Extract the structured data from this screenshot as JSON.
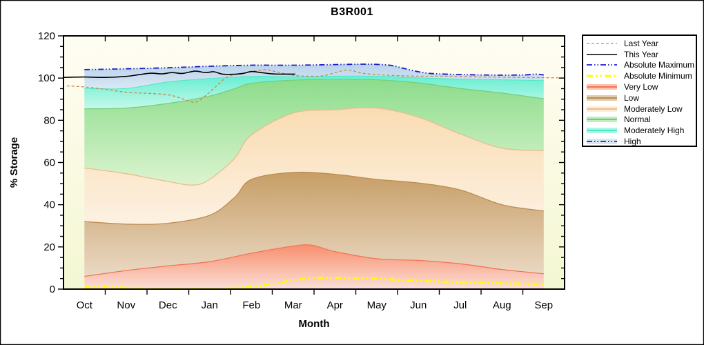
{
  "title": "B3R001",
  "chart_data": {
    "type": "area",
    "title": "B3R001",
    "xlabel": "Month",
    "ylabel": "% Storage",
    "ylim": [
      0,
      120
    ],
    "y_major_ticks": [
      0,
      20,
      40,
      60,
      80,
      100,
      120
    ],
    "y_minor_step": 5,
    "months": [
      "Oct",
      "Nov",
      "Dec",
      "Jan",
      "Feb",
      "Mar",
      "Apr",
      "May",
      "Jun",
      "Jul",
      "Aug",
      "Sep"
    ],
    "x_units": "u = month index, 0 = Oct center, 11 = Sep center",
    "plot_bg_top": "#fffdf3",
    "plot_bg_bottom": "#f4f7d2",
    "frame_color": "#000000",
    "bands": [
      {
        "name": "very-low",
        "label": "Very Low",
        "color_top": "#f78f6c",
        "color_bottom": "#fbdfd8",
        "edge_color": "#f2745a",
        "edge_width": 1.3,
        "top": [
          [
            0,
            6.0
          ],
          [
            1,
            8.8
          ],
          [
            2,
            11.0
          ],
          [
            3,
            13.0
          ],
          [
            4,
            17.0
          ],
          [
            5,
            20.4
          ],
          [
            5.45,
            20.8
          ],
          [
            6,
            17.8
          ],
          [
            7,
            14.4
          ],
          [
            8,
            13.6
          ],
          [
            9,
            12.0
          ],
          [
            10,
            9.3
          ],
          [
            11,
            7.3
          ]
        ]
      },
      {
        "name": "low",
        "label": "Low",
        "color_top": "#c79e66",
        "color_bottom": "#ead9c4",
        "edge_color": "#ba8c50",
        "edge_width": 1.3,
        "top": [
          [
            0,
            32
          ],
          [
            1,
            30.8
          ],
          [
            2,
            31.2
          ],
          [
            3,
            35
          ],
          [
            3.6,
            43.5
          ],
          [
            4,
            52
          ],
          [
            5,
            55.3
          ],
          [
            6,
            54.4
          ],
          [
            7,
            52
          ],
          [
            8,
            50.3
          ],
          [
            9,
            47
          ],
          [
            10,
            40
          ],
          [
            11,
            37
          ]
        ]
      },
      {
        "name": "moderately-low",
        "label": "Moderately Low",
        "color_top": "#f9dcb2",
        "color_bottom": "#fdf1e2",
        "edge_color": "#e9bd8c",
        "edge_width": 1.3,
        "top": [
          [
            0,
            57.4
          ],
          [
            1,
            54.7
          ],
          [
            2,
            51
          ],
          [
            2.6,
            49.3
          ],
          [
            3,
            52
          ],
          [
            3.6,
            62
          ],
          [
            4,
            73
          ],
          [
            5,
            83.4
          ],
          [
            6,
            85
          ],
          [
            7,
            85.8
          ],
          [
            8,
            81.5
          ],
          [
            9,
            73.5
          ],
          [
            10,
            66.8
          ],
          [
            11,
            65.6
          ]
        ]
      },
      {
        "name": "normal",
        "label": "Normal",
        "color_top": "#8cdc8c",
        "color_bottom": "#dcf4d0",
        "edge_color": "#74cf79",
        "edge_width": 1.3,
        "top": [
          [
            0,
            85.4
          ],
          [
            1,
            85.8
          ],
          [
            2,
            88
          ],
          [
            3,
            91.5
          ],
          [
            3.6,
            95
          ],
          [
            4,
            97.5
          ],
          [
            5,
            99
          ],
          [
            6,
            99.4
          ],
          [
            7,
            99.2
          ],
          [
            8,
            97.7
          ],
          [
            9,
            95.1
          ],
          [
            10,
            92.9
          ],
          [
            11,
            90.2
          ]
        ]
      },
      {
        "name": "moderately-high",
        "label": "Moderately High",
        "color_top": "#68efd1",
        "color_bottom": "#c6f8ea",
        "edge_color": "#4fe6c4",
        "edge_width": 1,
        "top": [
          [
            0,
            95.1
          ],
          [
            1,
            95.1
          ],
          [
            2,
            98.2
          ],
          [
            3,
            99.8
          ],
          [
            4,
            100.8
          ],
          [
            5,
            100.6
          ],
          [
            6,
            100.9
          ],
          [
            7,
            100.9
          ],
          [
            8,
            100.1
          ],
          [
            9,
            99.5
          ],
          [
            10,
            99.2
          ],
          [
            11,
            98.8
          ]
        ]
      },
      {
        "name": "high",
        "label": "High",
        "color_top": "#b9d3ea",
        "color_bottom": "#d9e8f5",
        "edge_color": "none",
        "edge_width": 0,
        "top": [
          [
            0,
            104.0
          ],
          [
            1,
            104.4
          ],
          [
            2,
            104.9
          ],
          [
            3,
            105.6
          ],
          [
            4,
            106.1
          ],
          [
            5,
            106.1
          ],
          [
            6,
            106.4
          ],
          [
            6.7,
            106.6
          ],
          [
            7,
            106.5
          ],
          [
            7.35,
            106.0
          ],
          [
            7.65,
            104.6
          ],
          [
            8,
            103.0
          ],
          [
            8.35,
            102.1
          ],
          [
            9,
            101.7
          ],
          [
            9.5,
            101.5
          ],
          [
            10,
            101.4
          ],
          [
            10.55,
            101.5
          ],
          [
            10.8,
            101.9
          ],
          [
            11,
            101.5
          ]
        ]
      }
    ],
    "lines": [
      {
        "name": "last-year",
        "label": "Last Year",
        "color": "#c8884a",
        "width": 1.3,
        "dash": "4 3",
        "points": [
          [
            -0.42,
            96.3
          ],
          [
            0,
            95.8
          ],
          [
            0.46,
            94.8
          ],
          [
            1,
            93.3
          ],
          [
            1.5,
            92.8
          ],
          [
            2,
            92.1
          ],
          [
            2.31,
            90.5
          ],
          [
            2.66,
            88.6
          ],
          [
            2.95,
            92.5
          ],
          [
            3.15,
            96
          ],
          [
            3.43,
            100.6
          ],
          [
            3.76,
            102.2
          ],
          [
            4.31,
            103.9
          ],
          [
            4.6,
            103
          ],
          [
            5,
            101.3
          ],
          [
            5.42,
            100.9
          ],
          [
            5.75,
            101.2
          ],
          [
            6.28,
            103.8
          ],
          [
            6.66,
            102.3
          ],
          [
            7.24,
            101.4
          ],
          [
            8,
            100.9
          ],
          [
            8.7,
            100.9
          ],
          [
            9.55,
            100.5
          ],
          [
            10.4,
            100.3
          ],
          [
            11,
            100.2
          ],
          [
            11.5,
            100.1
          ]
        ]
      },
      {
        "name": "absolute-minimum",
        "label": "Absolute Minimum",
        "color": "#ffff00",
        "width": 3,
        "dash": "9 4 2.5 4 2.5 4",
        "points": [
          [
            0,
            0.9
          ],
          [
            0.5,
            1.0
          ],
          [
            1,
            0.7
          ],
          [
            1.5,
            0.5
          ],
          [
            2,
            0.5
          ],
          [
            2.5,
            0.4
          ],
          [
            3,
            0.4
          ],
          [
            3.5,
            0.6
          ],
          [
            4,
            1.1
          ],
          [
            4.3,
            1.8
          ],
          [
            4.6,
            2.8
          ],
          [
            5,
            4.3
          ],
          [
            5.35,
            5.0
          ],
          [
            5.7,
            5.4
          ],
          [
            6,
            5.3
          ],
          [
            6.5,
            5.1
          ],
          [
            7,
            5.0
          ],
          [
            7.5,
            4.4
          ],
          [
            8,
            3.9
          ],
          [
            8.5,
            3.6
          ],
          [
            9,
            3.4
          ],
          [
            9.5,
            3.0
          ],
          [
            10,
            2.7
          ],
          [
            10.5,
            2.6
          ],
          [
            11,
            2.5
          ]
        ]
      },
      {
        "name": "absolute-maximum",
        "label": "Absolute Maximum",
        "color": "#1a1acd",
        "width": 1.8,
        "dash": "8 3 1.5 3 1.5 3",
        "points": [
          [
            0,
            104.0
          ],
          [
            1,
            104.4
          ],
          [
            2,
            104.9
          ],
          [
            3,
            105.6
          ],
          [
            4,
            106.1
          ],
          [
            5,
            106.1
          ],
          [
            6,
            106.4
          ],
          [
            6.7,
            106.6
          ],
          [
            7,
            106.5
          ],
          [
            7.35,
            106.0
          ],
          [
            7.65,
            104.6
          ],
          [
            8,
            103.0
          ],
          [
            8.35,
            102.1
          ],
          [
            9,
            101.7
          ],
          [
            9.5,
            101.5
          ],
          [
            10,
            101.4
          ],
          [
            10.55,
            101.5
          ],
          [
            10.8,
            101.9
          ],
          [
            11,
            101.5
          ]
        ]
      },
      {
        "name": "this-year",
        "label": "This Year",
        "color": "#000000",
        "width": 1.6,
        "dash": "",
        "points": [
          [
            -0.5,
            100.3
          ],
          [
            0,
            100.5
          ],
          [
            0.5,
            100.3
          ],
          [
            1,
            100.8
          ],
          [
            1.3,
            101.6
          ],
          [
            1.6,
            102.3
          ],
          [
            1.85,
            102.0
          ],
          [
            2.1,
            102.6
          ],
          [
            2.35,
            102.2
          ],
          [
            2.65,
            103.3
          ],
          [
            2.9,
            102.6
          ],
          [
            3.1,
            103.0
          ],
          [
            3.3,
            101.9
          ],
          [
            3.55,
            101.8
          ],
          [
            3.8,
            102.2
          ],
          [
            4.0,
            103.1
          ],
          [
            4.2,
            102.7
          ],
          [
            4.5,
            102.0
          ],
          [
            4.75,
            101.9
          ],
          [
            5.05,
            101.9
          ]
        ]
      }
    ],
    "legend": {
      "position": "right",
      "entries": [
        {
          "label": "Last Year",
          "kind": "line",
          "ref": "last-year"
        },
        {
          "label": "This Year",
          "kind": "line",
          "ref": "this-year"
        },
        {
          "label": "Absolute Maximum",
          "kind": "line",
          "ref": "absolute-maximum"
        },
        {
          "label": "Absolute Minimum",
          "kind": "line",
          "ref": "absolute-minimum"
        },
        {
          "label": "Very Low",
          "kind": "band",
          "ref": "very-low"
        },
        {
          "label": "Low",
          "kind": "band",
          "ref": "low"
        },
        {
          "label": "Moderately Low",
          "kind": "band",
          "ref": "moderately-low"
        },
        {
          "label": "Normal",
          "kind": "band",
          "ref": "normal"
        },
        {
          "label": "Moderately High",
          "kind": "band",
          "ref": "moderately-high"
        },
        {
          "label": "High",
          "kind": "band",
          "ref": "high",
          "overlay_line": "absolute-maximum"
        }
      ]
    }
  }
}
